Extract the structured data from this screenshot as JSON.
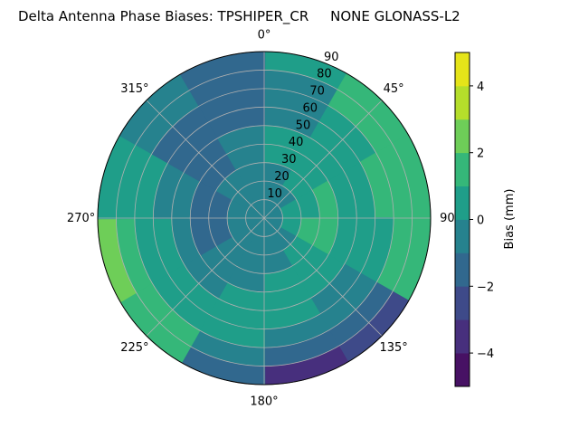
{
  "chart_data": {
    "type": "heatmap",
    "subtype": "polar-contourf",
    "title": "Delta Antenna Phase Biases: TPSHIPER_CR     NONE GLONASS-L2",
    "angular_ticks": [
      "0°",
      "45°",
      "90",
      "135°",
      "180°",
      "225°",
      "270°",
      "315°"
    ],
    "angular_tick_values": [
      0,
      45,
      90,
      135,
      180,
      225,
      270,
      315
    ],
    "radial_ticks": [
      "10",
      "20",
      "30",
      "40",
      "50",
      "60",
      "70",
      "80",
      "90"
    ],
    "radial_tick_values": [
      10,
      20,
      30,
      40,
      50,
      60,
      70,
      80,
      90
    ],
    "rlim": [
      0,
      90
    ],
    "theta_zero": "N",
    "theta_direction": "clockwise",
    "grid": true,
    "azimuth_sectors_deg": [
      0,
      30,
      60,
      90,
      120,
      150,
      180,
      210,
      240,
      270,
      300,
      330
    ],
    "zenith_rings_deg": [
      0,
      10,
      20,
      30,
      40,
      50,
      60,
      70,
      80,
      90
    ],
    "bias_mm_grid": [
      [
        -0.5,
        -0.5,
        -0.5,
        -0.5,
        -0.5,
        -0.5,
        -0.5,
        -0.5,
        -0.5,
        -0.5,
        -0.5,
        -0.5
      ],
      [
        -0.5,
        -0.5,
        0.5,
        0.5,
        -0.5,
        -0.5,
        -0.5,
        -0.5,
        -0.5,
        -0.5,
        -0.5,
        -0.5
      ],
      [
        -0.5,
        0.5,
        0.5,
        1.5,
        0.5,
        -0.5,
        -0.5,
        -0.5,
        -1.5,
        -1.5,
        -0.5,
        -0.5
      ],
      [
        0.5,
        0.5,
        1.5,
        1.5,
        0.5,
        0.5,
        -0.5,
        -0.5,
        -1.5,
        -1.5,
        -1.5,
        -0.5
      ],
      [
        0.5,
        0.5,
        0.5,
        0.5,
        0.5,
        0.5,
        0.5,
        -0.5,
        -0.5,
        -0.5,
        -1.5,
        -0.5
      ],
      [
        -0.5,
        0.5,
        0.5,
        0.5,
        -0.5,
        0.5,
        0.5,
        0.5,
        0.5,
        -0.5,
        -1.5,
        -1.5
      ],
      [
        -0.5,
        0.5,
        1.5,
        0.5,
        -0.5,
        -0.5,
        0.5,
        0.5,
        0.5,
        0.5,
        -1.5,
        -1.5
      ],
      [
        -0.5,
        1.5,
        1.5,
        1.5,
        -1.5,
        -1.5,
        -0.5,
        1.5,
        1.5,
        0.5,
        -0.5,
        -1.5
      ],
      [
        0.5,
        1.5,
        1.5,
        1.5,
        -2.5,
        -3.5,
        -1.5,
        1.5,
        2.5,
        0.5,
        -0.5,
        -1.5
      ]
    ],
    "colorbar": {
      "label": "Bias (mm)",
      "levels": [
        -5,
        -4,
        -3,
        -2,
        -1,
        0,
        1,
        2,
        3,
        4,
        5
      ],
      "ticks": [
        "−4",
        "−2",
        "0",
        "2",
        "4"
      ],
      "tick_values": [
        -4,
        -2,
        0,
        2,
        4
      ],
      "colors": [
        "#471164",
        "#472f7d",
        "#3e4a89",
        "#31688e",
        "#26828e",
        "#1f9e89",
        "#35b779",
        "#6ece58",
        "#b5de2b",
        "#e5e419"
      ]
    }
  }
}
